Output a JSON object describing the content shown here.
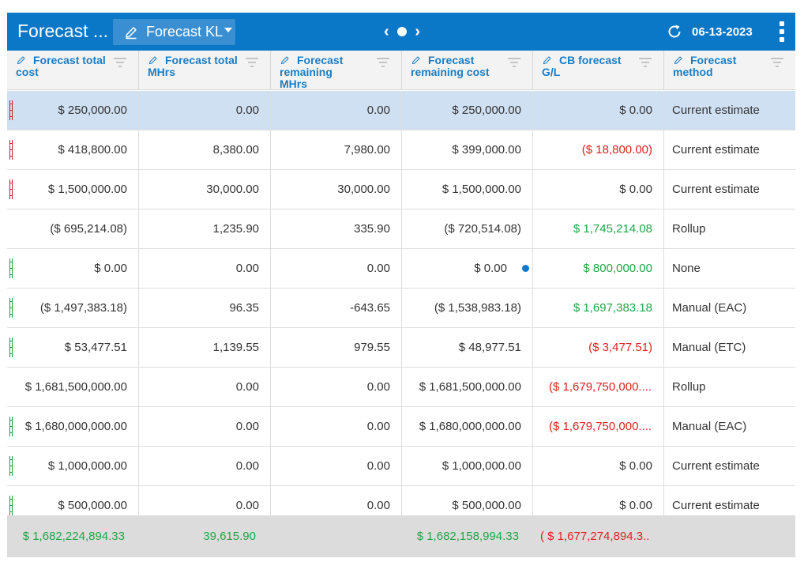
{
  "app": {
    "title": "Forecast ...",
    "view_name": "Forecast KL",
    "date": "06-13-2023"
  },
  "icons": {
    "edit": "pencil-icon",
    "dropdown": "caret-down-icon",
    "prev": "chevron-left-icon",
    "next": "chevron-right-icon",
    "refresh": "refresh-icon",
    "menu": "kebab-menu-icon",
    "filter": "filter-icon"
  },
  "colors": {
    "header_bar": "#0b77c7",
    "column_header_text": "#1a7dc5",
    "positive": "#21a545",
    "negative": "#e02020",
    "selected_row": "#cfe0f3",
    "footer_bg": "#dcdcdc",
    "flag_red": "#c0202a",
    "flag_green": "#1e9b3c"
  },
  "columns": [
    {
      "label": "Forecast total cost"
    },
    {
      "label": "Forecast total MHrs"
    },
    {
      "label": "Forecast remaining MHrs"
    },
    {
      "label": "Forecast remaining cost"
    },
    {
      "label": "CB forecast G/L"
    },
    {
      "label": "Forecast method"
    }
  ],
  "rows": [
    {
      "flag": "red",
      "selected": true,
      "cells": [
        "$ 250,000.00",
        "0.00",
        "0.00",
        "$ 250,000.00",
        "$ 0.00",
        "Current estimate"
      ],
      "gl_color": "default"
    },
    {
      "flag": "red",
      "selected": false,
      "cells": [
        "$ 418,800.00",
        "8,380.00",
        "7,980.00",
        "$ 399,000.00",
        "($ 18,800.00)",
        "Current estimate"
      ],
      "gl_color": "negative"
    },
    {
      "flag": "red",
      "selected": false,
      "cells": [
        "$ 1,500,000.00",
        "30,000.00",
        "30,000.00",
        "$ 1,500,000.00",
        "$ 0.00",
        "Current estimate"
      ],
      "gl_color": "default"
    },
    {
      "flag": "none",
      "selected": false,
      "cells": [
        "($ 695,214.08)",
        "1,235.90",
        "335.90",
        "($ 720,514.08)",
        "$ 1,745,214.08",
        "Rollup"
      ],
      "gl_color": "positive"
    },
    {
      "flag": "green",
      "selected": false,
      "cells": [
        "$ 0.00",
        "0.00",
        "0.00",
        "$ 0.00",
        "$ 800,000.00",
        "None"
      ],
      "gl_color": "positive",
      "dot": true
    },
    {
      "flag": "green",
      "selected": false,
      "cells": [
        "($ 1,497,383.18)",
        "96.35",
        "-643.65",
        "($ 1,538,983.18)",
        "$ 1,697,383.18",
        "Manual (EAC)"
      ],
      "gl_color": "positive"
    },
    {
      "flag": "green",
      "selected": false,
      "cells": [
        "$ 53,477.51",
        "1,139.55",
        "979.55",
        "$ 48,977.51",
        "($ 3,477.51)",
        "Manual (ETC)"
      ],
      "gl_color": "negative"
    },
    {
      "flag": "none",
      "selected": false,
      "cells": [
        "$ 1,681,500,000.00",
        "0.00",
        "0.00",
        "$ 1,681,500,000.00",
        "($ 1,679,750,000....",
        "Rollup"
      ],
      "gl_color": "negative"
    },
    {
      "flag": "green",
      "selected": false,
      "cells": [
        "$ 1,680,000,000.00",
        "0.00",
        "0.00",
        "$ 1,680,000,000.00",
        "($ 1,679,750,000....",
        "Manual (EAC)"
      ],
      "gl_color": "negative"
    },
    {
      "flag": "green",
      "selected": false,
      "cells": [
        "$ 1,000,000.00",
        "0.00",
        "0.00",
        "$ 1,000,000.00",
        "$ 0.00",
        "Current estimate"
      ],
      "gl_color": "default"
    },
    {
      "flag": "green",
      "selected": false,
      "cells": [
        "$ 500,000.00",
        "0.00",
        "0.00",
        "$ 500,000.00",
        "$ 0.00",
        "Current estimate"
      ],
      "gl_color": "default"
    }
  ],
  "totals": [
    "$ 1,682,224,894.33",
    "39,615.90",
    "",
    "$ 1,682,158,994.33",
    "( $ 1,677,274,894.3...",
    ""
  ]
}
